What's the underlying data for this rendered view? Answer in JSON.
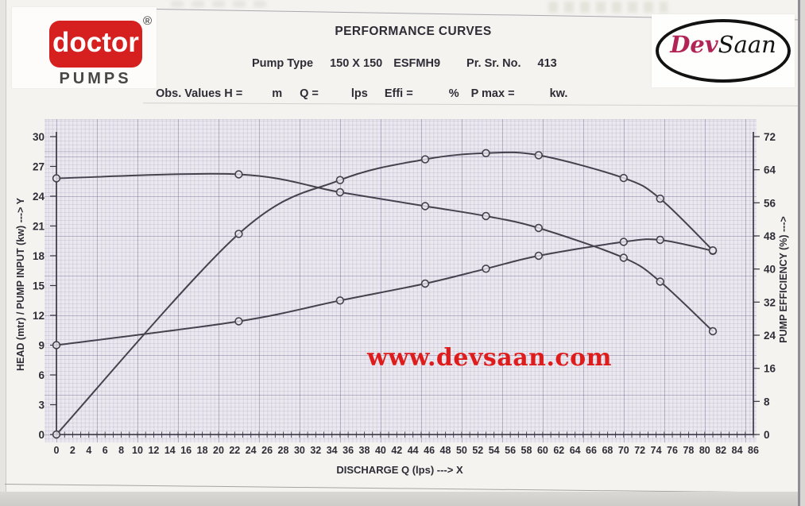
{
  "logos": {
    "doctor": {
      "brand": "doctor",
      "registered": "®",
      "subtitle": "PUMPS",
      "accent_color": "#d6201f"
    },
    "devsaan": {
      "part1": "Dev",
      "part2": "Saan",
      "part1_color": "#b22456"
    }
  },
  "header": {
    "title": "PERFORMANCE CURVES",
    "pump_type_label": "Pump Type",
    "pump_size": "150 X 150",
    "pump_model": "ESFMH9",
    "serial_label": "Pr. Sr. No.",
    "serial_value": "413",
    "obs_label": "Obs. Values",
    "obs_fields": [
      {
        "label": "H =",
        "unit": "m"
      },
      {
        "label": "Q =",
        "unit": "lps"
      },
      {
        "label": "Effi =",
        "unit": "%"
      },
      {
        "label": "P max =",
        "unit": "kw."
      }
    ]
  },
  "watermark": {
    "text": "www.devsaan.com",
    "color": "#df1c1c"
  },
  "chart_data": {
    "type": "line",
    "title": "PERFORMANCE CURVES",
    "xlabel": "DISCHARGE Q (lps) ---> X",
    "ylabel_left": "HEAD (mtr) / PUMP INPUT (kw) ---> Y",
    "ylabel_right": "PUMP EFFICIENCY (%) --->",
    "xlim": [
      0,
      86
    ],
    "ylim_left": [
      0,
      30
    ],
    "ylim_right": [
      0,
      72
    ],
    "xticks": [
      0,
      2,
      4,
      6,
      8,
      10,
      12,
      14,
      16,
      18,
      20,
      22,
      24,
      26,
      28,
      30,
      32,
      34,
      36,
      38,
      40,
      42,
      44,
      46,
      48,
      50,
      52,
      54,
      56,
      58,
      60,
      62,
      64,
      66,
      68,
      70,
      72,
      74,
      76,
      78,
      80,
      82,
      84,
      86
    ],
    "yticks_left": [
      0,
      3,
      6,
      9,
      12,
      15,
      18,
      21,
      24,
      27,
      30
    ],
    "yticks_right": [
      0,
      8,
      16,
      24,
      32,
      40,
      48,
      56,
      64,
      72
    ],
    "grid": true,
    "legend": "none",
    "marker": "open-circle",
    "curve_color": "#45414d",
    "series": [
      {
        "name": "Head (mtr)",
        "axis": "left",
        "x": [
          0,
          22.5,
          35,
          45.5,
          53,
          59.5,
          70,
          74.5,
          81
        ],
        "y": [
          25.8,
          26.2,
          24.4,
          23.0,
          22.0,
          20.8,
          17.8,
          15.4,
          10.4
        ]
      },
      {
        "name": "Pump Input (kw)",
        "axis": "left",
        "x": [
          0,
          22.5,
          35,
          45.5,
          53,
          59.5,
          70,
          74.5,
          81
        ],
        "y": [
          9.0,
          11.4,
          13.5,
          15.2,
          16.7,
          18.0,
          19.4,
          19.6,
          18.5
        ]
      },
      {
        "name": "Pump Efficiency (%)",
        "axis": "right",
        "x": [
          0,
          22.5,
          35,
          45.5,
          53,
          59.5,
          70,
          74.5,
          81
        ],
        "y": [
          0,
          48.5,
          61.5,
          66.5,
          68.0,
          67.5,
          62.0,
          57.0,
          44.5
        ]
      }
    ]
  }
}
